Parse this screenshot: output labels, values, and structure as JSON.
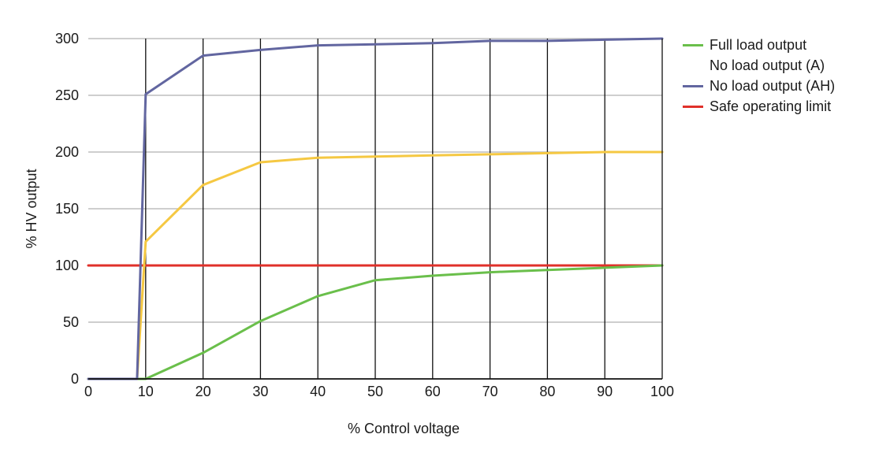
{
  "chart_data": {
    "type": "line",
    "title": "",
    "xlabel": "% Control voltage",
    "ylabel": "% HV output",
    "xlim": [
      0,
      100
    ],
    "ylim": [
      0,
      300
    ],
    "xticks": [
      0,
      10,
      20,
      30,
      40,
      50,
      60,
      70,
      80,
      90,
      100
    ],
    "yticks": [
      0,
      50,
      100,
      150,
      200,
      250,
      300
    ],
    "grid": {
      "vertical": true,
      "horizontal": true
    },
    "legend_position": "right",
    "series": [
      {
        "name": "Full load output",
        "color": "#6abf4b",
        "x": [
          0,
          8.5,
          10,
          20,
          30,
          40,
          50,
          60,
          70,
          80,
          90,
          100
        ],
        "y": [
          0,
          0,
          0,
          23,
          51,
          73,
          87,
          91,
          94,
          96,
          98,
          100
        ]
      },
      {
        "name": "No load output (A)",
        "color": "#f5c842",
        "x": [
          0,
          8.5,
          10,
          20,
          30,
          40,
          50,
          60,
          70,
          80,
          90,
          100
        ],
        "y": [
          0,
          0,
          121,
          171,
          191,
          195,
          196,
          197,
          198,
          199,
          200,
          200
        ]
      },
      {
        "name": "No load output (AH)",
        "color": "#6266a0",
        "x": [
          0,
          8.5,
          10,
          20,
          30,
          40,
          50,
          60,
          70,
          80,
          90,
          100
        ],
        "y": [
          0,
          0,
          251,
          285,
          290,
          294,
          295,
          296,
          298,
          298,
          299,
          300
        ]
      },
      {
        "name": "Safe operating limit",
        "color": "#e0302a",
        "x": [
          0,
          100
        ],
        "y": [
          100,
          100
        ]
      }
    ]
  }
}
